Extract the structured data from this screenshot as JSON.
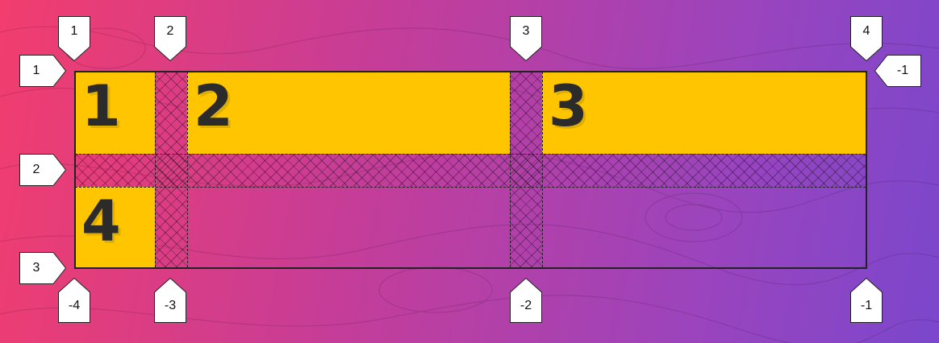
{
  "grid_items": [
    "1",
    "2",
    "3",
    "4"
  ],
  "column_lines_top": [
    "1",
    "2",
    "3",
    "4"
  ],
  "column_lines_bottom": [
    "-4",
    "-3",
    "-2",
    "-1"
  ],
  "row_lines_left": [
    "1",
    "2",
    "3"
  ],
  "row_lines_right": [
    "-1"
  ],
  "colors": {
    "item": "#ffc600",
    "tag": "#ffffff",
    "line": "#222222"
  }
}
